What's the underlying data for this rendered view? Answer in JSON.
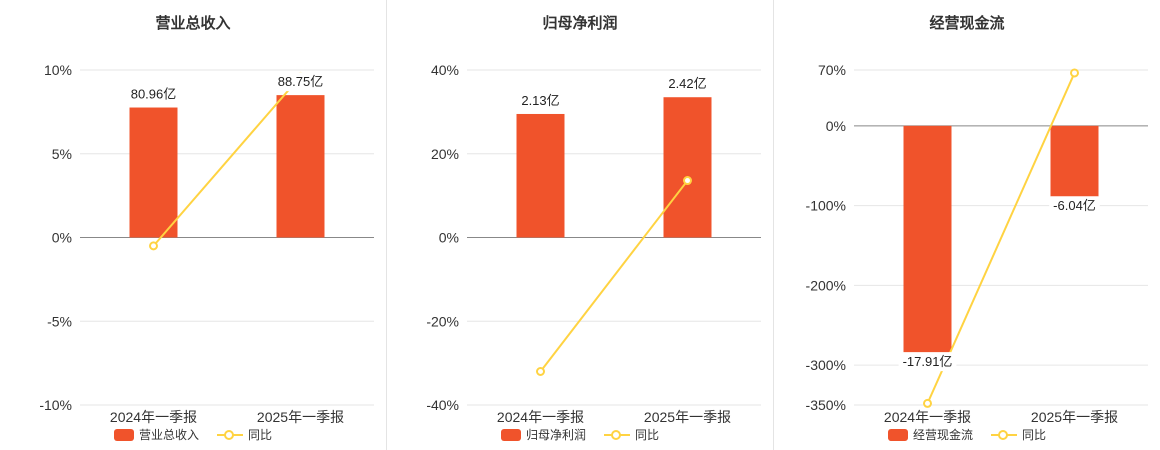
{
  "colors": {
    "bar": "#f0532b",
    "line": "#ffd342",
    "grid": "#e6e6e6",
    "axis": "#888888",
    "tick_text": "#333333",
    "label_text": "#222222"
  },
  "chart_data": [
    {
      "type": "bar+line",
      "title": "营业总收入",
      "categories": [
        "2024年一季报",
        "2025年一季报"
      ],
      "ylim": [
        -10,
        10
      ],
      "yticks": [
        10,
        5,
        0,
        -5,
        -10
      ],
      "ytick_suffix": "%",
      "grid": true,
      "legend_position": "bottom",
      "bar": {
        "name": "营业总收入",
        "values": [
          80.96,
          88.75
        ],
        "unit": "亿",
        "labels": [
          "80.96亿",
          "88.75亿"
        ],
        "plot_values": [
          7.76,
          8.5
        ]
      },
      "line": {
        "name": "同比",
        "values_pct": [
          -0.5,
          9.62
        ]
      }
    },
    {
      "type": "bar+line",
      "title": "归母净利润",
      "categories": [
        "2024年一季报",
        "2025年一季报"
      ],
      "ylim": [
        -40,
        40
      ],
      "yticks": [
        40,
        20,
        0,
        -20,
        -40
      ],
      "ytick_suffix": "%",
      "grid": true,
      "legend_position": "bottom",
      "bar": {
        "name": "归母净利润",
        "values": [
          2.13,
          2.42
        ],
        "unit": "亿",
        "labels": [
          "2.13亿",
          "2.42亿"
        ],
        "plot_values": [
          29.5,
          33.5
        ]
      },
      "line": {
        "name": "同比",
        "values_pct": [
          -32,
          13.6
        ]
      }
    },
    {
      "type": "bar+line",
      "title": "经营现金流",
      "categories": [
        "2024年一季报",
        "2025年一季报"
      ],
      "ylim": [
        -350,
        70
      ],
      "yticks": [
        70,
        0,
        -100,
        -200,
        -300,
        -350
      ],
      "ytick_suffix": "%",
      "grid": true,
      "legend_position": "bottom",
      "bar": {
        "name": "经营现金流",
        "values": [
          -17.91,
          -6.04
        ],
        "unit": "亿",
        "labels": [
          "-17.91亿",
          "-6.04亿"
        ],
        "plot_values": [
          -295,
          -99.5
        ]
      },
      "line": {
        "name": "同比",
        "values_pct": [
          -348,
          66.3
        ]
      }
    }
  ]
}
